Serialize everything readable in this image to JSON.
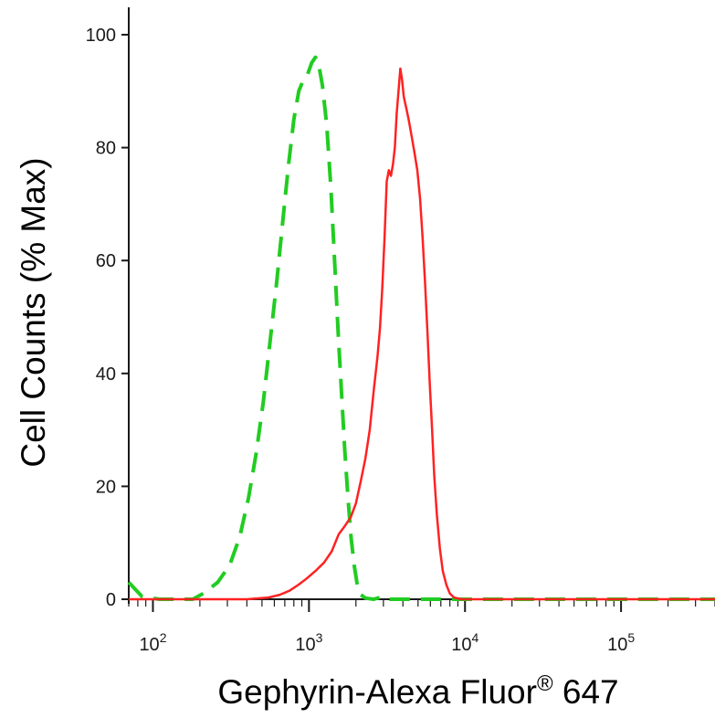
{
  "chart_data": {
    "type": "line",
    "xlabel": "Gephyrin-Alexa Fluor",
    "xlabel_superscript": "®",
    "xlabel_suffix": " 647",
    "ylabel": "Cell Counts (% Max)",
    "x_scale": "log",
    "xlim": [
      70,
      400000
    ],
    "ylim": [
      0,
      100
    ],
    "y_ticks": [
      {
        "value": 0,
        "label": "0"
      },
      {
        "value": 20,
        "label": "20"
      },
      {
        "value": 40,
        "label": "40"
      },
      {
        "value": 60,
        "label": "60"
      },
      {
        "value": 80,
        "label": "80"
      },
      {
        "value": 100,
        "label": "100"
      }
    ],
    "x_ticks": [
      {
        "value": 100,
        "base": "10",
        "exp": "2"
      },
      {
        "value": 1000,
        "base": "10",
        "exp": "3"
      },
      {
        "value": 10000,
        "base": "10",
        "exp": "4"
      },
      {
        "value": 100000,
        "base": "10",
        "exp": "5"
      }
    ],
    "grid": false,
    "legend": "none",
    "series": [
      {
        "color": "#22cc22",
        "style": "dashed",
        "points": [
          [
            70,
            3
          ],
          [
            85,
            0.5
          ],
          [
            110,
            0
          ],
          [
            150,
            0
          ],
          [
            180,
            0
          ],
          [
            210,
            1
          ],
          [
            260,
            3
          ],
          [
            310,
            6
          ],
          [
            360,
            11
          ],
          [
            410,
            18
          ],
          [
            460,
            26
          ],
          [
            510,
            35
          ],
          [
            560,
            45
          ],
          [
            620,
            56
          ],
          [
            680,
            67
          ],
          [
            740,
            77
          ],
          [
            800,
            85
          ],
          [
            860,
            90
          ],
          [
            920,
            92
          ],
          [
            980,
            93
          ],
          [
            1040,
            95
          ],
          [
            1100,
            96
          ],
          [
            1150,
            95
          ],
          [
            1220,
            91
          ],
          [
            1300,
            84
          ],
          [
            1380,
            73
          ],
          [
            1460,
            60
          ],
          [
            1540,
            47
          ],
          [
            1620,
            36
          ],
          [
            1700,
            26
          ],
          [
            1780,
            18
          ],
          [
            1860,
            11
          ],
          [
            1950,
            6
          ],
          [
            2040,
            2.5
          ],
          [
            2150,
            0.8
          ],
          [
            2300,
            0.2
          ],
          [
            2600,
            0
          ],
          [
            3000,
            0.5
          ],
          [
            3300,
            0
          ],
          [
            5000,
            0
          ],
          [
            10000,
            0
          ],
          [
            100000,
            0
          ],
          [
            400000,
            0
          ]
        ]
      },
      {
        "color": "#ff2222",
        "style": "solid",
        "points": [
          [
            70,
            0
          ],
          [
            400,
            0
          ],
          [
            550,
            0.3
          ],
          [
            650,
            0.8
          ],
          [
            750,
            1.5
          ],
          [
            850,
            2.5
          ],
          [
            950,
            3.5
          ],
          [
            1100,
            5
          ],
          [
            1250,
            6.5
          ],
          [
            1400,
            8.5
          ],
          [
            1550,
            11.5
          ],
          [
            1700,
            13
          ],
          [
            1850,
            14.5
          ],
          [
            2000,
            17
          ],
          [
            2150,
            21
          ],
          [
            2300,
            25
          ],
          [
            2450,
            30
          ],
          [
            2600,
            37
          ],
          [
            2750,
            43
          ],
          [
            2850,
            48
          ],
          [
            2950,
            55
          ],
          [
            3050,
            64
          ],
          [
            3150,
            74
          ],
          [
            3250,
            76
          ],
          [
            3350,
            75
          ],
          [
            3450,
            77
          ],
          [
            3550,
            80
          ],
          [
            3650,
            86
          ],
          [
            3750,
            90
          ],
          [
            3850,
            94
          ],
          [
            3950,
            92
          ],
          [
            4050,
            89
          ],
          [
            4200,
            87
          ],
          [
            4350,
            85
          ],
          [
            4550,
            82
          ],
          [
            4750,
            79
          ],
          [
            4950,
            76
          ],
          [
            5150,
            71
          ],
          [
            5350,
            64
          ],
          [
            5550,
            56
          ],
          [
            5750,
            47
          ],
          [
            5950,
            38
          ],
          [
            6150,
            30
          ],
          [
            6350,
            22
          ],
          [
            6600,
            15
          ],
          [
            6900,
            9
          ],
          [
            7200,
            5
          ],
          [
            7600,
            2.5
          ],
          [
            8000,
            1
          ],
          [
            8500,
            0.3
          ],
          [
            9500,
            0
          ],
          [
            12000,
            0
          ],
          [
            100000,
            0
          ],
          [
            400000,
            0
          ]
        ]
      }
    ]
  }
}
